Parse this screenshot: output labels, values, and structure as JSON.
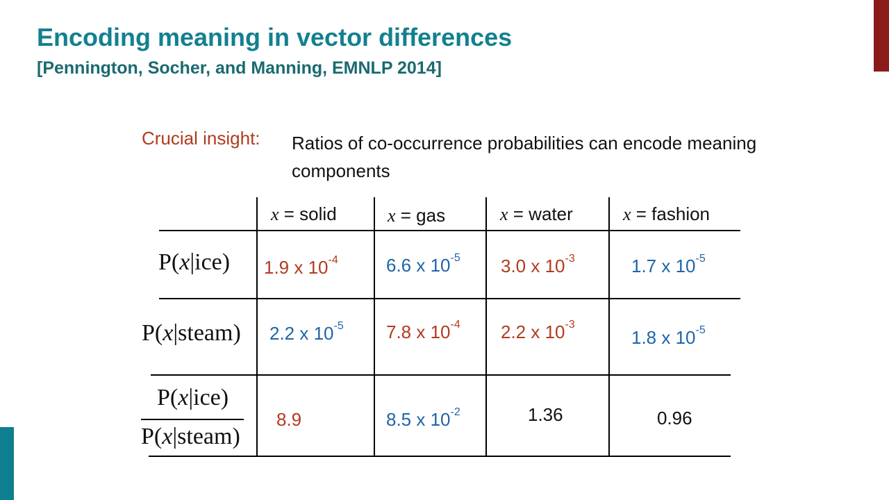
{
  "slide": {
    "title": "Encoding meaning in vector differences",
    "subtitle": "[Pennington, Socher, and Manning, EMNLP 2014]",
    "insight_label": "Crucial insight:",
    "insight_text": "Ratios of co-occurrence probabilities can encode meaning components",
    "colors": {
      "title": "#13808f",
      "red": "#b23a1e",
      "blue": "#1f64a8",
      "accent_top": "#8b1a1a",
      "accent_bottom": "#0d7f8e"
    }
  },
  "table": {
    "var_symbol": "x",
    "headers": [
      " = solid",
      " = gas",
      " = water",
      " = fashion"
    ],
    "rows": [
      {
        "label": {
          "prefix": "P(",
          "var": "x",
          "suffix": "|ice)"
        },
        "cells": [
          {
            "mantissa": "1.9 x 10",
            "exp": "-4",
            "color": "red"
          },
          {
            "mantissa": "6.6 x 10",
            "exp": "-5",
            "color": "blue"
          },
          {
            "mantissa": "3.0 x 10",
            "exp": "-3",
            "color": "red"
          },
          {
            "mantissa": "1.7 x 10",
            "exp": "-5",
            "color": "blue"
          }
        ]
      },
      {
        "label": {
          "prefix": "P(",
          "var": "x",
          "suffix": "|steam)"
        },
        "cells": [
          {
            "mantissa": "2.2 x 10",
            "exp": "-5",
            "color": "blue"
          },
          {
            "mantissa": "7.8 x 10",
            "exp": "-4",
            "color": "red"
          },
          {
            "mantissa": "2.2 x 10",
            "exp": "-3",
            "color": "red"
          },
          {
            "mantissa": "1.8 x 10",
            "exp": "-5",
            "color": "blue"
          }
        ]
      },
      {
        "label_num": {
          "prefix": "P(",
          "var": "x",
          "suffix": "|ice)"
        },
        "label_den": {
          "prefix": "P(",
          "var": "x",
          "suffix": "|steam)"
        },
        "cells": [
          {
            "mantissa": "8.9",
            "exp": "",
            "color": "red"
          },
          {
            "mantissa": "8.5 x 10",
            "exp": "-2",
            "color": "blue"
          },
          {
            "mantissa": "1.36",
            "exp": "",
            "color": "black"
          },
          {
            "mantissa": "0.96",
            "exp": "",
            "color": "black"
          }
        ]
      }
    ]
  }
}
